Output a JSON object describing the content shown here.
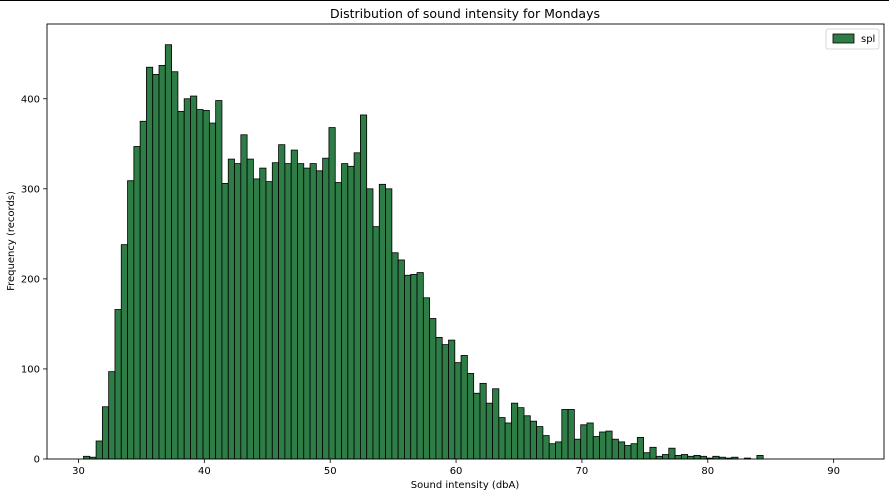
{
  "chart_data": {
    "type": "bar",
    "title": "Distribution of sound intensity for Mondays",
    "xlabel": "Sound intensity (dbA)",
    "ylabel": "Frequency (records)",
    "xlim": [
      27.5,
      94
    ],
    "ylim": [
      0,
      483
    ],
    "xticks": [
      30,
      40,
      50,
      60,
      70,
      80,
      90
    ],
    "yticks": [
      0,
      100,
      200,
      300,
      400
    ],
    "grid": false,
    "legend_position": "top-right",
    "bar_color": "#2e7d46",
    "edge_color": "#000000",
    "bin_start": 30.4,
    "bin_width": 0.5,
    "series": [
      {
        "name": "spl",
        "values": [
          3,
          2,
          20,
          58,
          97,
          166,
          238,
          309,
          347,
          375,
          435,
          427,
          437,
          460,
          430,
          386,
          400,
          403,
          388,
          387,
          373,
          398,
          306,
          333,
          328,
          360,
          333,
          311,
          323,
          308,
          329,
          349,
          328,
          343,
          328,
          323,
          328,
          320,
          334,
          368,
          307,
          328,
          325,
          340,
          382,
          300,
          258,
          305,
          300,
          229,
          221,
          204,
          205,
          207,
          179,
          156,
          135,
          127,
          132,
          107,
          115,
          95,
          73,
          84,
          62,
          78,
          46,
          40,
          62,
          57,
          48,
          42,
          36,
          26,
          17,
          19,
          55,
          55,
          22,
          38,
          40,
          25,
          30,
          31,
          22,
          19,
          15,
          17,
          24,
          7,
          13,
          3,
          5,
          12,
          4,
          5,
          3,
          4,
          3,
          1,
          3,
          2,
          1,
          2,
          0,
          1,
          0,
          4
        ]
      }
    ]
  }
}
